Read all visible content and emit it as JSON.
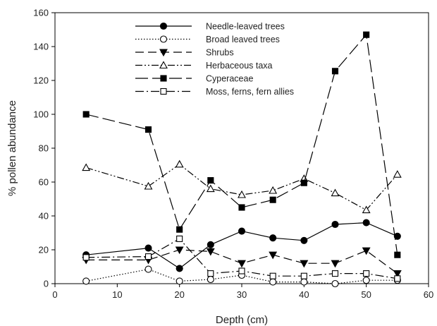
{
  "chart_data": {
    "type": "line",
    "title": "",
    "xlabel": "Depth (cm)",
    "ylabel": "% pollen abundance",
    "xlim": [
      0,
      60
    ],
    "ylim": [
      0,
      160
    ],
    "xticks": [
      0,
      10,
      20,
      30,
      40,
      50,
      60
    ],
    "yticks": [
      0,
      20,
      40,
      60,
      80,
      100,
      120,
      140,
      160
    ],
    "grid": false,
    "legend_position": "top-center",
    "x": [
      5,
      15,
      20,
      25,
      30,
      35,
      40,
      45,
      50,
      55
    ],
    "series": [
      {
        "name": "Needle-leaved trees",
        "marker": "circle",
        "fill": "filled",
        "dash": "solid",
        "color": "#000000",
        "values": [
          17,
          21,
          9,
          23,
          31,
          27,
          25.5,
          35,
          36,
          28
        ]
      },
      {
        "name": "Broad leaved trees",
        "marker": "circle",
        "fill": "open",
        "dash": "dotted",
        "color": "#000000",
        "values": [
          1.5,
          8.5,
          1.5,
          2.5,
          5,
          1,
          1,
          0,
          2,
          2
        ]
      },
      {
        "name": "Shrubs",
        "marker": "triangle-down",
        "fill": "filled",
        "dash": "dashed",
        "color": "#000000",
        "values": [
          14,
          14,
          20,
          19,
          12,
          17,
          12,
          12,
          19.5,
          6
        ]
      },
      {
        "name": "Herbaceous taxa",
        "marker": "triangle-up",
        "fill": "open",
        "dash": "dash-dot-dot",
        "color": "#000000",
        "values": [
          68.5,
          57.5,
          70.5,
          56,
          52.5,
          55,
          62,
          53.5,
          43.5,
          64.5
        ]
      },
      {
        "name": "Cyperaceae",
        "marker": "square",
        "fill": "filled",
        "dash": "long-dash",
        "color": "#000000",
        "values": [
          100,
          91,
          32,
          61,
          45,
          49.5,
          59.5,
          125.5,
          147,
          17
        ]
      },
      {
        "name": "Moss, ferns, fern allies",
        "marker": "square",
        "fill": "open",
        "dash": "dash-dot",
        "color": "#000000",
        "values": [
          15.5,
          16,
          26.5,
          6,
          7.5,
          4.5,
          4.5,
          6,
          6,
          3
        ]
      }
    ]
  }
}
